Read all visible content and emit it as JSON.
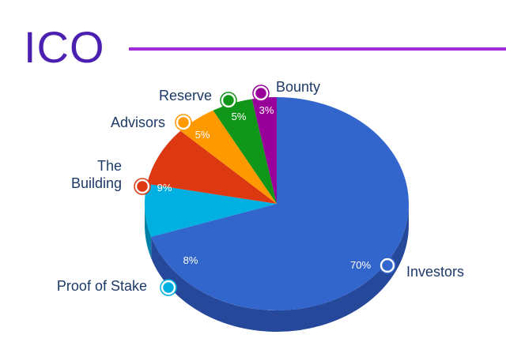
{
  "title": "ICO",
  "chart_data": {
    "type": "pie",
    "title": "ICO",
    "slices": [
      {
        "label": "Investors",
        "value": 70,
        "value_label": "70%",
        "color": "#3366cc",
        "side": "#25489a"
      },
      {
        "label": "Proof of Stake",
        "value": 8,
        "value_label": "8%",
        "color": "#00b0e0",
        "side": "#0080a8"
      },
      {
        "label": "The\nBuilding",
        "value": 9,
        "value_label": "9%",
        "color": "#dc3912",
        "side": "#a4290c"
      },
      {
        "label": "Advisors",
        "value": 5,
        "value_label": "5%",
        "color": "#ff9900",
        "side": "#c07200"
      },
      {
        "label": "Reserve",
        "value": 5,
        "value_label": "5%",
        "color": "#109618",
        "side": "#0b6a11"
      },
      {
        "label": "Bounty",
        "value": 3,
        "value_label": "3%",
        "color": "#990099",
        "side": "#6c006c"
      }
    ],
    "legend": "outside labels"
  }
}
